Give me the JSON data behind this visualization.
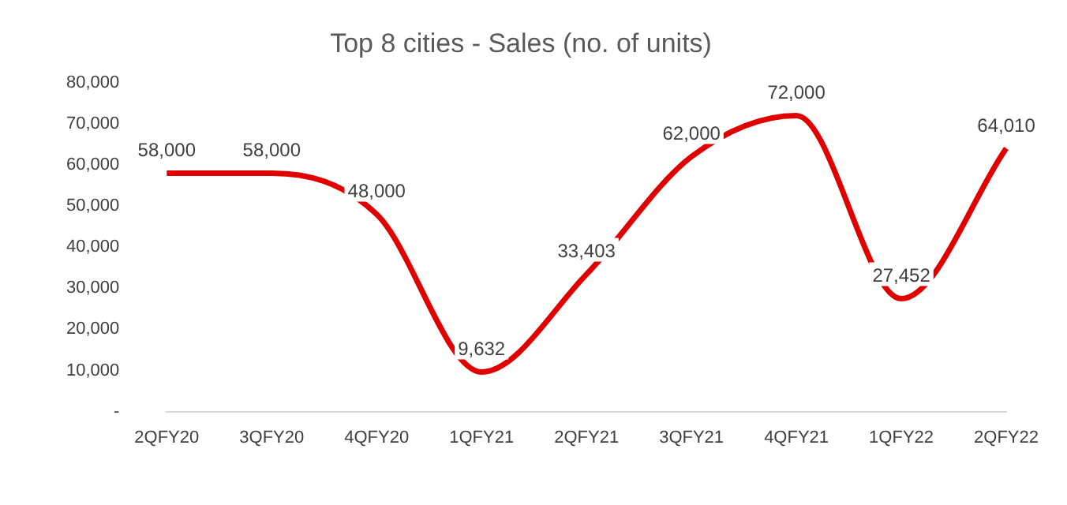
{
  "chart_data": {
    "type": "line",
    "title": "Top 8 cities - Sales (no. of units)",
    "categories": [
      "2QFY20",
      "3QFY20",
      "4QFY20",
      "1QFY21",
      "2QFY21",
      "3QFY21",
      "4QFY21",
      "1QFY22",
      "2QFY22"
    ],
    "series": [
      {
        "color": "#e00000",
        "values": [
          58000,
          58000,
          48000,
          9632,
          33403,
          62000,
          72000,
          27452,
          64010
        ],
        "value_labels": [
          "58,000",
          "58,000",
          "48,000",
          "9,632",
          "33,403",
          "62,000",
          "72,000",
          "27,452",
          "64,010"
        ]
      }
    ],
    "ylim": [
      0,
      80000
    ],
    "yticks": [
      {
        "value": 0,
        "label": "-"
      },
      {
        "value": 10000,
        "label": "10,000"
      },
      {
        "value": 20000,
        "label": "20,000"
      },
      {
        "value": 30000,
        "label": "30,000"
      },
      {
        "value": 40000,
        "label": "40,000"
      },
      {
        "value": 50000,
        "label": "50,000"
      },
      {
        "value": 60000,
        "label": "60,000"
      },
      {
        "value": 70000,
        "label": "70,000"
      },
      {
        "value": 80000,
        "label": "80,000"
      }
    ],
    "grid": false,
    "legend": false,
    "marker": "none",
    "line_style": "solid"
  }
}
